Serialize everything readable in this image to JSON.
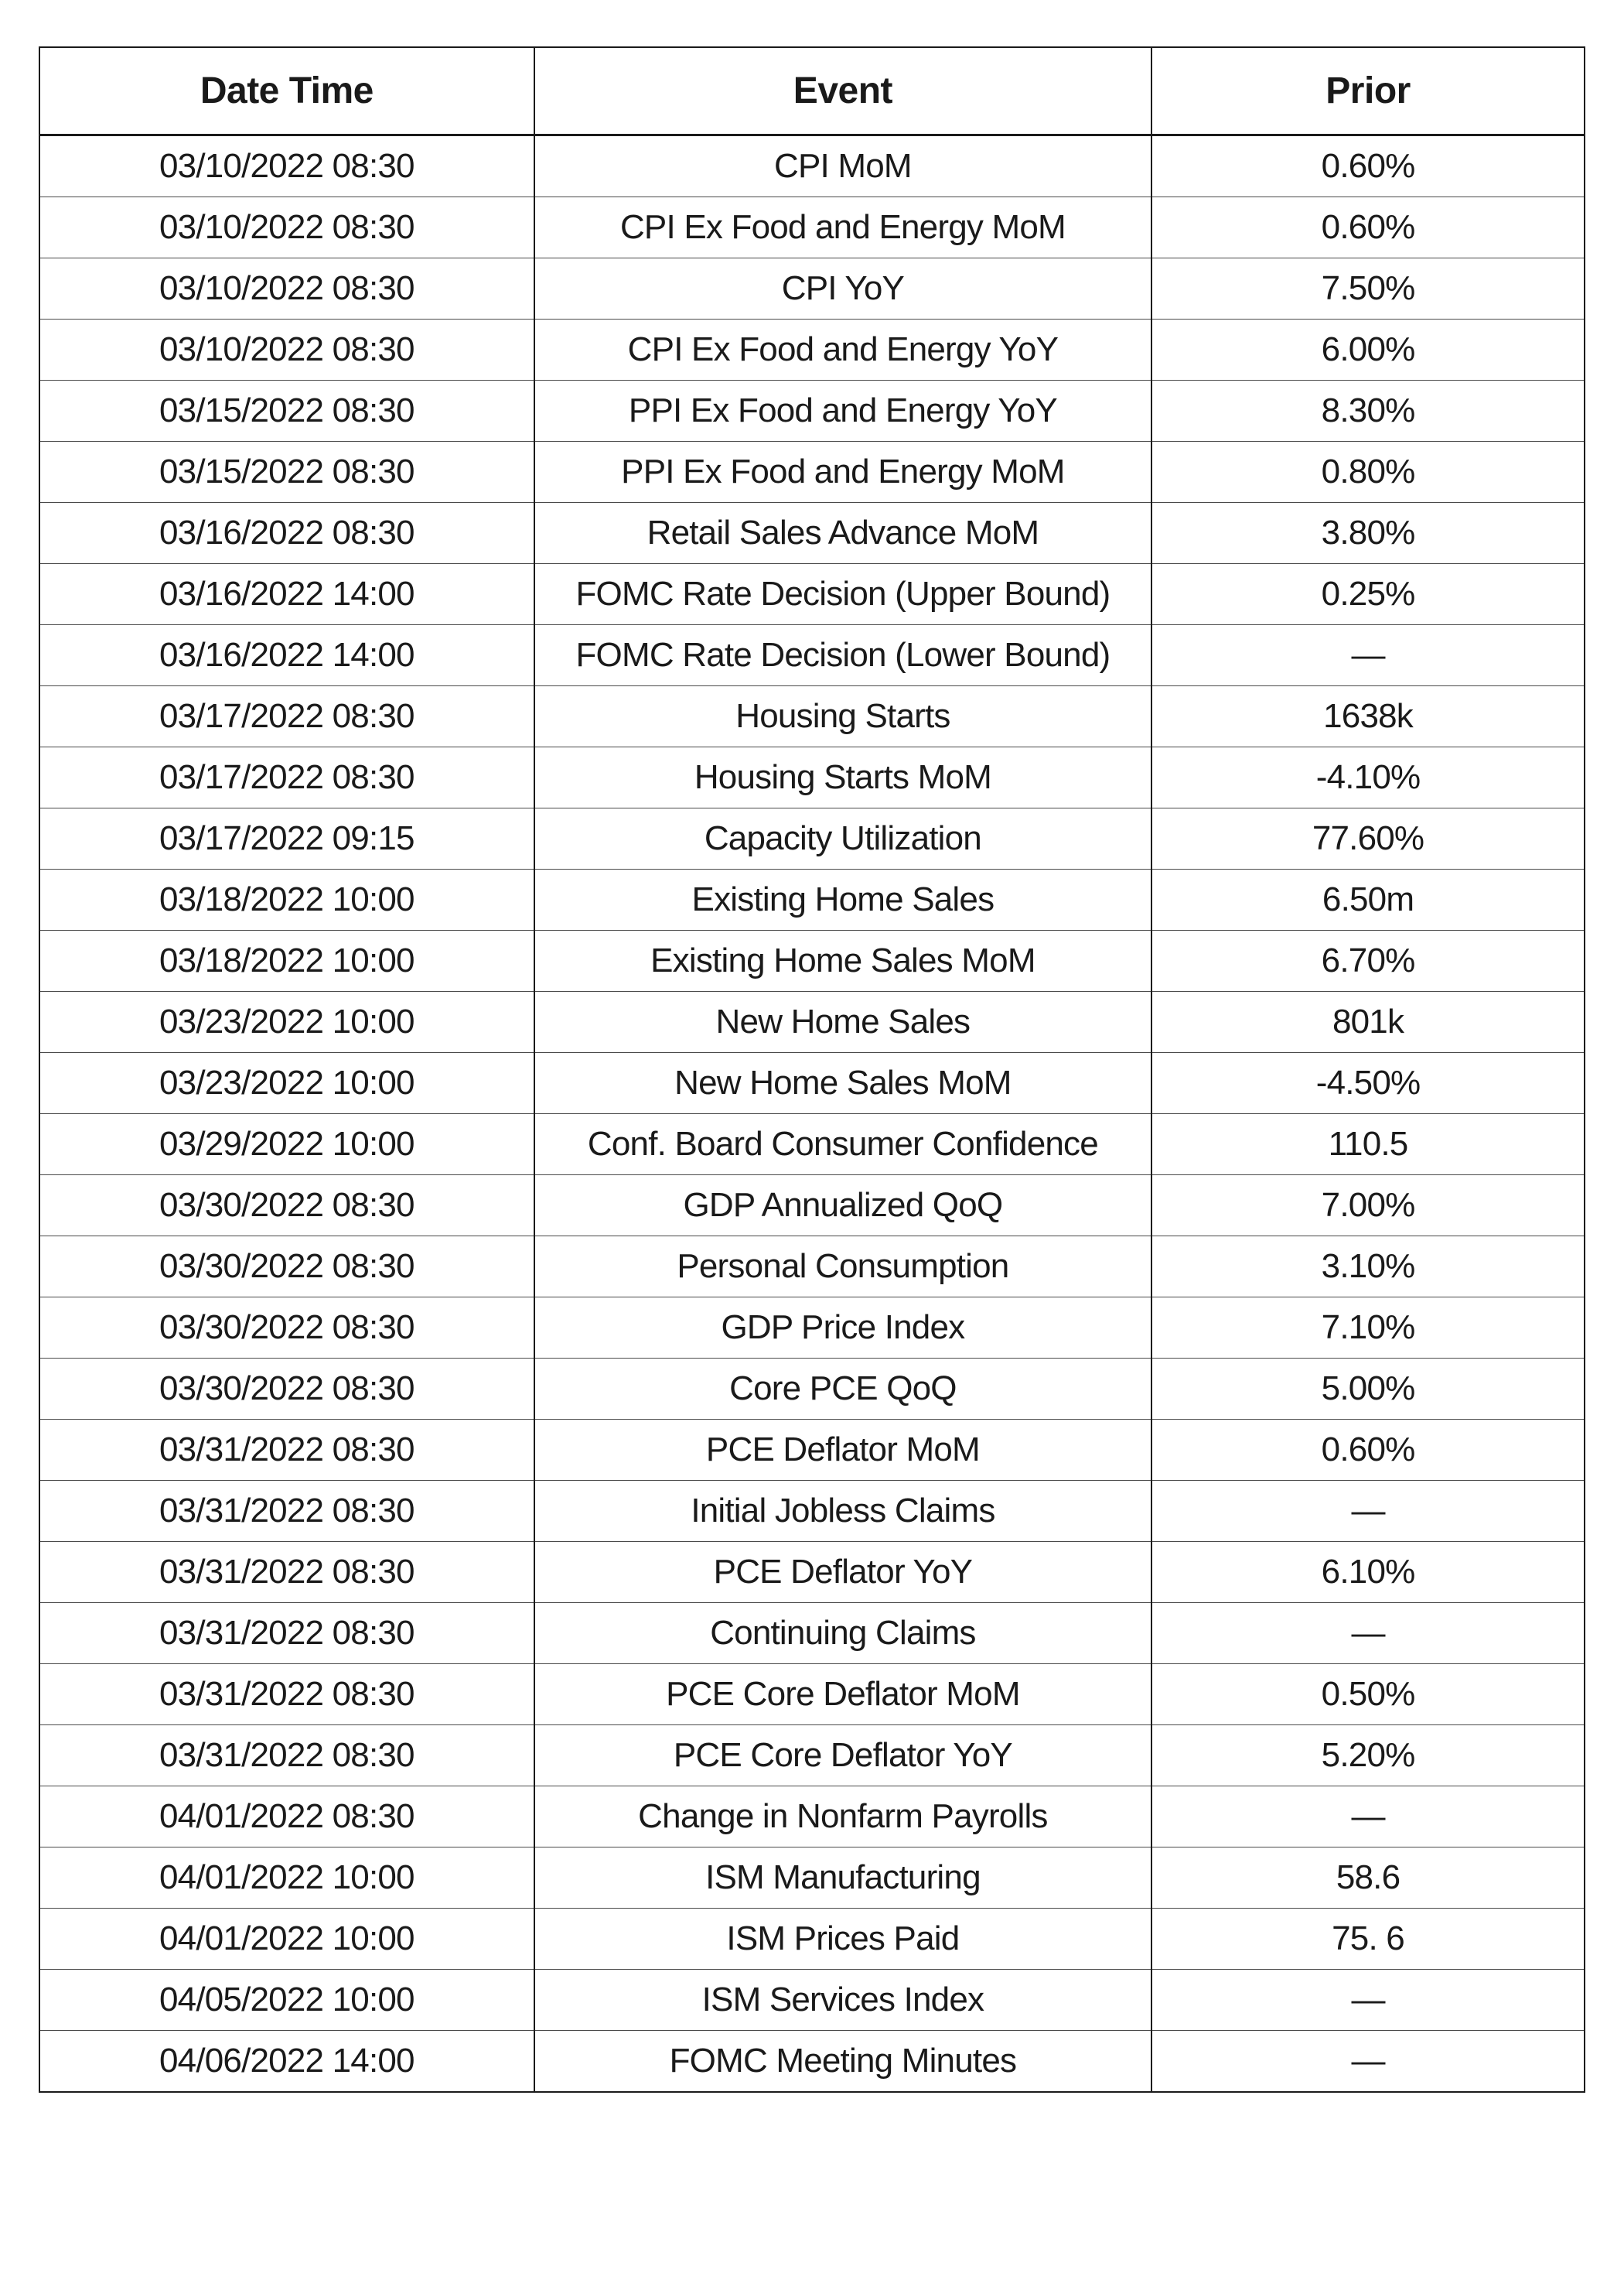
{
  "table": {
    "type": "table",
    "columns": [
      "Date Time",
      "Event",
      "Prior"
    ],
    "column_widths": [
      "32%",
      "40%",
      "28%"
    ],
    "header_fontsize": 48,
    "header_fontweight": 600,
    "cell_fontsize": 44,
    "cell_fontweight": 400,
    "text_color": "#1a1a1a",
    "border_color": "#1a1a1a",
    "row_border_color": "#4a4a4a",
    "background_color": "#ffffff",
    "outer_border_width": 2,
    "header_bottom_border_width": 3,
    "row_border_width": 1,
    "column_border_width": 2,
    "text_align": "center",
    "rows": [
      {
        "datetime": "03/10/2022 08:30",
        "event": "CPI MoM",
        "prior": "0.60%"
      },
      {
        "datetime": "03/10/2022 08:30",
        "event": "CPI Ex Food and Energy MoM",
        "prior": "0.60%"
      },
      {
        "datetime": "03/10/2022 08:30",
        "event": "CPI YoY",
        "prior": "7.50%"
      },
      {
        "datetime": "03/10/2022 08:30",
        "event": "CPI Ex Food and Energy YoY",
        "prior": "6.00%"
      },
      {
        "datetime": "03/15/2022 08:30",
        "event": "PPI Ex Food and Energy YoY",
        "prior": "8.30%"
      },
      {
        "datetime": "03/15/2022 08:30",
        "event": "PPI Ex Food and Energy MoM",
        "prior": "0.80%"
      },
      {
        "datetime": "03/16/2022 08:30",
        "event": "Retail Sales Advance MoM",
        "prior": "3.80%"
      },
      {
        "datetime": "03/16/2022 14:00",
        "event": "FOMC Rate Decision (Upper Bound)",
        "prior": "0.25%"
      },
      {
        "datetime": "03/16/2022 14:00",
        "event": "FOMC Rate Decision (Lower Bound)",
        "prior": "—"
      },
      {
        "datetime": "03/17/2022 08:30",
        "event": "Housing Starts",
        "prior": "1638k"
      },
      {
        "datetime": "03/17/2022 08:30",
        "event": "Housing Starts MoM",
        "prior": "-4.10%"
      },
      {
        "datetime": "03/17/2022 09:15",
        "event": "Capacity Utilization",
        "prior": "77.60%"
      },
      {
        "datetime": "03/18/2022 10:00",
        "event": "Existing Home Sales",
        "prior": "6.50m"
      },
      {
        "datetime": "03/18/2022 10:00",
        "event": "Existing Home Sales MoM",
        "prior": "6.70%"
      },
      {
        "datetime": "03/23/2022 10:00",
        "event": "New Home Sales",
        "prior": "801k"
      },
      {
        "datetime": "03/23/2022 10:00",
        "event": "New Home Sales MoM",
        "prior": "-4.50%"
      },
      {
        "datetime": "03/29/2022 10:00",
        "event": "Conf. Board Consumer Confidence",
        "prior": "110.5"
      },
      {
        "datetime": "03/30/2022 08:30",
        "event": "GDP Annualized QoQ",
        "prior": "7.00%"
      },
      {
        "datetime": "03/30/2022 08:30",
        "event": "Personal Consumption",
        "prior": "3.10%"
      },
      {
        "datetime": "03/30/2022 08:30",
        "event": "GDP Price Index",
        "prior": "7.10%"
      },
      {
        "datetime": "03/30/2022 08:30",
        "event": "Core PCE QoQ",
        "prior": "5.00%"
      },
      {
        "datetime": "03/31/2022 08:30",
        "event": "PCE Deflator MoM",
        "prior": "0.60%"
      },
      {
        "datetime": "03/31/2022 08:30",
        "event": "Initial Jobless Claims",
        "prior": "—"
      },
      {
        "datetime": "03/31/2022 08:30",
        "event": "PCE Deflator YoY",
        "prior": "6.10%"
      },
      {
        "datetime": "03/31/2022 08:30",
        "event": "Continuing Claims",
        "prior": "—"
      },
      {
        "datetime": "03/31/2022 08:30",
        "event": "PCE Core Deflator MoM",
        "prior": "0.50%"
      },
      {
        "datetime": "03/31/2022 08:30",
        "event": "PCE Core Deflator YoY",
        "prior": "5.20%"
      },
      {
        "datetime": "04/01/2022 08:30",
        "event": "Change in Nonfarm Payrolls",
        "prior": "—"
      },
      {
        "datetime": "04/01/2022 10:00",
        "event": "ISM Manufacturing",
        "prior": "58.6"
      },
      {
        "datetime": "04/01/2022 10:00",
        "event": "ISM Prices Paid",
        "prior": "75. 6"
      },
      {
        "datetime": "04/05/2022 10:00",
        "event": "ISM Services Index",
        "prior": "—"
      },
      {
        "datetime": "04/06/2022 14:00",
        "event": "FOMC Meeting Minutes",
        "prior": "—"
      }
    ]
  }
}
